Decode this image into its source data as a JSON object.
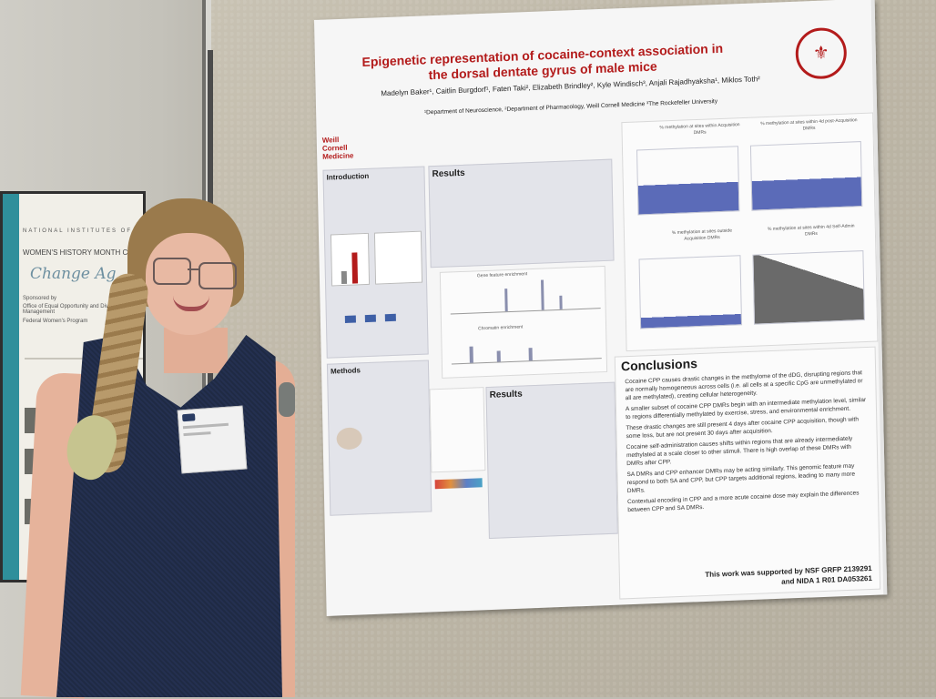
{
  "scene": {
    "subject": "researcher standing next to a scientific poster"
  },
  "left_poster": {
    "org": "NATIONAL INSTITUTES OF",
    "title": "WOMEN'S HISTORY MONTH CE",
    "script": "Change Ag",
    "sponsor": "Sponsored by",
    "sponsor_lines": [
      "Office of Equal Opportunity and Diversity Management",
      "Federal Women's Program"
    ]
  },
  "poster": {
    "title": "Epigenetic representation of cocaine-context association in the dorsal dentate gyrus of male mice",
    "authors": "Madelyn Baker¹, Caitlin Burgdorf¹, Faten Taki², Elizabeth Brindley², Kyle Windisch³, Anjali Rajadhyaksha¹, Miklos Toth²",
    "affiliations": "¹Department of Neuroscience, ²Department of Pharmacology, Weill Cornell Medicine ³The Rockefeller University",
    "institution": "Weill Cornell Medicine",
    "sections": {
      "intro": "Introduction",
      "methods": "Methods",
      "results1": "Results",
      "results2": "Results",
      "gene_feature": "Gene feature enrichment",
      "chromatin": "Chromatin enrichment",
      "plot1": "% methylation at sites within Acquisition DMRs",
      "plot2": "% methylation at sites within 4d post-Acquisition DMRs",
      "plot3": "% methylation at sites outside Acquisition DMRs",
      "plot4": "% methylation at sites within 4d Self-Admin DMRs"
    },
    "conclusions_title": "Conclusions",
    "conclusions": [
      "Cocaine CPP causes drastic changes in the methylome of the dDG, disrupting regions that are normally homogeneous across cells (i.e. all cells at a specific CpG are unmethylated or all are methylated), creating cellular heterogeneity.",
      "A smaller subset of cocaine CPP DMRs begin with an intermediate methylation level, similar to regions differentially methylated by exercise, stress, and environmental enrichment.",
      "These drastic changes are still present 4 days after cocaine CPP acquisition, though with some loss, but are not present 30 days after acquisition.",
      "Cocaine self-administration causes shifts within regions that are already intermediately methylated at a scale closer to other stimuli. There is high overlap of these DMRs with DMRs after CPP.",
      "SA DMRs and CPP enhancer DMRs may be acting similarly. This genomic feature may respond to both SA and CPP, but CPP targets additional regions, leading to many more DMRs.",
      "Contextual encoding in CPP and a more acute cocaine dose may explain the differences between CPP and SA DMRs."
    ],
    "support": [
      "This work was supported by NSF GRFP 2139291",
      "and NIDA 1 R01 DA053261"
    ],
    "colors": {
      "title": "#b31b1b",
      "panel": "#e3e4ea",
      "bars": "#8a8fae",
      "distro": "#5b6bb8"
    }
  }
}
